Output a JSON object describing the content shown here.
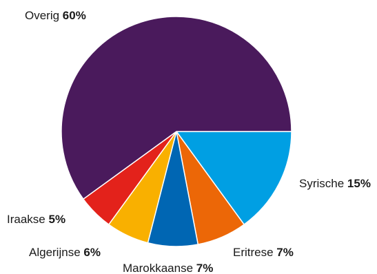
{
  "chart_data": {
    "type": "pie",
    "title": "",
    "start": "east",
    "direction": "clockwise",
    "slices": [
      {
        "label": "Syrische",
        "value": 15,
        "value_label": "15%",
        "color": "#009fe3"
      },
      {
        "label": "Eritrese",
        "value": 7,
        "value_label": "7%",
        "color": "#ec6707"
      },
      {
        "label": "Marokkaanse",
        "value": 7,
        "value_label": "7%",
        "color": "#0066b3"
      },
      {
        "label": "Algerijnse",
        "value": 6,
        "value_label": "6%",
        "color": "#f9b000"
      },
      {
        "label": "Iraakse",
        "value": 5,
        "value_label": "5%",
        "color": "#e3221b"
      },
      {
        "label": "Overig",
        "value": 60,
        "value_label": "60%",
        "color": "#4a1a5c"
      }
    ]
  }
}
